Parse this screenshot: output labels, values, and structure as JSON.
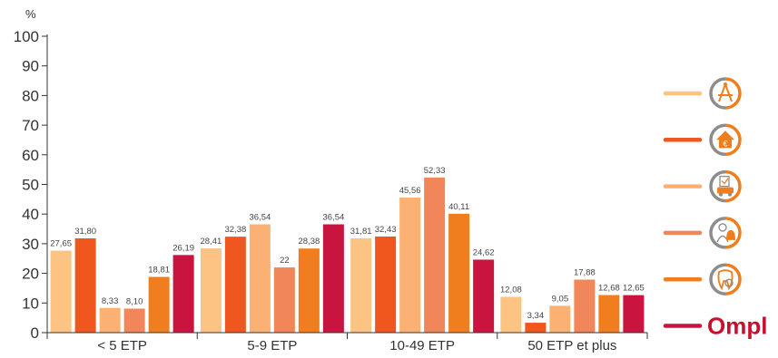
{
  "chart_data": {
    "type": "bar",
    "title": "",
    "ylabel": "%",
    "xlabel": "",
    "ylim": [
      0,
      100
    ],
    "yticks": [
      0,
      10,
      20,
      30,
      40,
      50,
      60,
      70,
      80,
      90,
      100
    ],
    "grid": false,
    "legend_position": "right",
    "categories": [
      "< 5 ETP",
      "5-9 ETP",
      "10-49 ETP",
      "50 ETP et plus"
    ],
    "series": [
      {
        "values": [
          27.65,
          28.41,
          31.81,
          12.08
        ],
        "labels": [
          "27,65",
          "28,41",
          "31,81",
          "12,08"
        ],
        "color": "#fcc383",
        "icon": "compass-ruler-icon"
      },
      {
        "values": [
          31.8,
          32.38,
          32.43,
          3.34
        ],
        "labels": [
          "31,80",
          "32,38",
          "32,43",
          "3,34"
        ],
        "color": "#f0571f",
        "icon": "house-euro-icon"
      },
      {
        "values": [
          8.33,
          36.54,
          45.56,
          9.05
        ],
        "labels": [
          "8,33",
          "36,54",
          "45,56",
          "9,05"
        ],
        "color": "#fbb173",
        "icon": "vehicle-document-icon"
      },
      {
        "values": [
          8.1,
          22,
          52.33,
          17.88
        ],
        "labels": [
          "8,10",
          "22",
          "52,33",
          "17,88"
        ],
        "color": "#f08659",
        "icon": "person-bell-icon"
      },
      {
        "values": [
          18.81,
          28.38,
          40.11,
          12.68
        ],
        "labels": [
          "18,81",
          "28,38",
          "40,11",
          "12,68"
        ],
        "color": "#f17e1e",
        "icon": "tooth-icon"
      },
      {
        "values": [
          26.19,
          36.54,
          24.62,
          12.65
        ],
        "labels": [
          "26,19",
          "36,54",
          "24,62",
          "12,65"
        ],
        "color": "#c8143e",
        "icon": "ompl-logo"
      }
    ],
    "brand": "Ompl"
  }
}
